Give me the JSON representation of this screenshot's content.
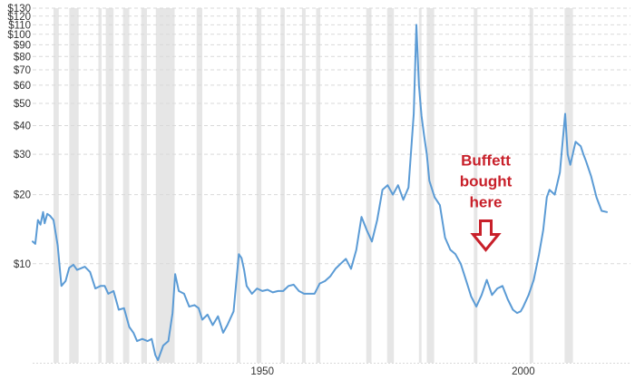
{
  "chart_data": {
    "type": "line",
    "title": "",
    "xlabel": "",
    "ylabel": "",
    "y_scale": "log",
    "xlim": [
      1906,
      2016
    ],
    "ylim": [
      3.7,
      130
    ],
    "grid": "horizontal dashed",
    "legend": "none",
    "colors": {
      "line": "#5b9bd5",
      "recession": "#e6e6e6",
      "annotation": "#c8202a",
      "grid": "#d9d9d9",
      "axis_text": "#333333"
    },
    "y_ticks": [
      {
        "value": 10,
        "label": "$10"
      },
      {
        "value": 20,
        "label": "$20"
      },
      {
        "value": 30,
        "label": "$30"
      },
      {
        "value": 40,
        "label": "$40"
      },
      {
        "value": 50,
        "label": "$50"
      },
      {
        "value": 60,
        "label": "$60"
      },
      {
        "value": 70,
        "label": "$70"
      },
      {
        "value": 80,
        "label": "$80"
      },
      {
        "value": 90,
        "label": "$90"
      },
      {
        "value": 100,
        "label": "$100"
      },
      {
        "value": 110,
        "label": "$110"
      },
      {
        "value": 120,
        "label": "$120"
      },
      {
        "value": 130,
        "label": "$130"
      }
    ],
    "x_ticks": [
      {
        "value": 1950,
        "label": "1950"
      },
      {
        "value": 2000,
        "label": "2000"
      }
    ],
    "recessions": [
      [
        1910.0,
        1911.0
      ],
      [
        1913.0,
        1914.8
      ],
      [
        1918.6,
        1919.2
      ],
      [
        1920.0,
        1921.5
      ],
      [
        1923.3,
        1924.5
      ],
      [
        1926.8,
        1927.9
      ],
      [
        1929.6,
        1933.2
      ],
      [
        1937.4,
        1938.5
      ],
      [
        1945.1,
        1945.8
      ],
      [
        1948.9,
        1949.8
      ],
      [
        1953.5,
        1954.3
      ],
      [
        1957.6,
        1958.3
      ],
      [
        1960.3,
        1961.1
      ],
      [
        1969.9,
        1970.9
      ],
      [
        1973.9,
        1975.2
      ],
      [
        1980.0,
        1980.5
      ],
      [
        1981.5,
        1982.9
      ],
      [
        1990.5,
        1991.2
      ],
      [
        2001.2,
        2001.9
      ],
      [
        2007.9,
        2009.5
      ]
    ],
    "series": [
      {
        "x": [
          1906.0,
          1906.5,
          1907.0,
          1907.5,
          1908.0,
          1908.3,
          1908.8,
          1909.3,
          1910.0,
          1910.8,
          1911.5,
          1912.3,
          1913.0,
          1913.8,
          1914.5,
          1915.0,
          1916.0,
          1917.0,
          1918.0,
          1919.0,
          1919.8,
          1920.5,
          1921.5,
          1922.5,
          1923.5,
          1924.5,
          1925.3,
          1926.0,
          1927.0,
          1928.0,
          1928.8,
          1929.5,
          1930.0,
          1931.0,
          1932.0,
          1932.8,
          1933.3,
          1934.0,
          1935.0,
          1936.0,
          1937.0,
          1937.8,
          1938.5,
          1939.5,
          1940.5,
          1941.5,
          1942.5,
          1943.3,
          1944.5,
          1945.5,
          1946.0,
          1946.5,
          1947.0,
          1948.0,
          1949.0,
          1950.0,
          1951.0,
          1952.0,
          1953.0,
          1954.0,
          1955.0,
          1956.0,
          1957.0,
          1958.0,
          1959.0,
          1960.0,
          1961.0,
          1962.0,
          1963.0,
          1964.0,
          1965.0,
          1966.0,
          1967.0,
          1968.0,
          1969.0,
          1970.0,
          1971.0,
          1972.0,
          1973.0,
          1974.0,
          1975.0,
          1976.0,
          1977.0,
          1978.0,
          1979.0,
          1979.5,
          1980.0,
          1980.5,
          1981.0,
          1981.5,
          1982.0,
          1983.0,
          1984.0,
          1985.0,
          1986.0,
          1987.0,
          1988.0,
          1989.0,
          1990.0,
          1991.0,
          1992.0,
          1993.0,
          1994.0,
          1995.0,
          1996.0,
          1997.0,
          1998.0,
          1998.8,
          1999.5,
          2000.0,
          2001.0,
          2002.0,
          2003.0,
          2003.8,
          2004.5,
          2005.0,
          2006.0,
          2007.0,
          2008.0,
          2008.5,
          2009.0,
          2010.0,
          2011.0,
          2011.5,
          2012.0,
          2013.0,
          2014.0,
          2015.0,
          2016.0
        ],
        "y": [
          12.5,
          12.2,
          15.5,
          14.8,
          16.8,
          15.0,
          16.5,
          16.2,
          15.5,
          12.0,
          8.0,
          8.4,
          9.6,
          9.9,
          9.4,
          9.5,
          9.7,
          9.2,
          7.8,
          8.0,
          8.0,
          7.4,
          7.6,
          6.3,
          6.4,
          5.3,
          5.0,
          4.6,
          4.7,
          4.6,
          4.7,
          4.0,
          3.8,
          4.4,
          4.6,
          6.1,
          9.0,
          7.6,
          7.4,
          6.5,
          6.6,
          6.4,
          5.7,
          6.0,
          5.4,
          5.9,
          5.0,
          5.4,
          6.2,
          11.0,
          10.6,
          9.4,
          8.0,
          7.4,
          7.8,
          7.6,
          7.7,
          7.5,
          7.6,
          7.6,
          8.0,
          8.1,
          7.6,
          7.4,
          7.4,
          7.4,
          8.2,
          8.4,
          8.8,
          9.5,
          10.0,
          10.5,
          9.5,
          11.5,
          16.0,
          14.0,
          12.5,
          15.5,
          21.0,
          22.0,
          20.0,
          22.0,
          19.0,
          21.5,
          45.0,
          110.0,
          60.0,
          44.0,
          36.0,
          30.0,
          23.0,
          19.5,
          18.0,
          13.0,
          11.5,
          11.0,
          10.0,
          8.5,
          7.2,
          6.5,
          7.3,
          8.5,
          7.3,
          7.8,
          8.0,
          7.0,
          6.3,
          6.1,
          6.2,
          6.5,
          7.3,
          8.5,
          11.0,
          14.0,
          19.5,
          21.0,
          20.0,
          25.0,
          45.0,
          30.0,
          27.0,
          34.0,
          32.5,
          30.0,
          28.0,
          24.0,
          19.5,
          17.0,
          16.8
        ]
      }
    ],
    "annotations": [
      {
        "lines": [
          "Buffett",
          "bought",
          "here"
        ],
        "x": 1992.8,
        "y": 17
      }
    ]
  }
}
